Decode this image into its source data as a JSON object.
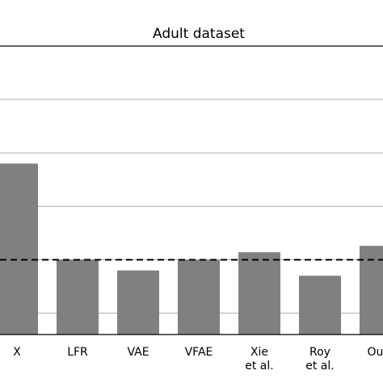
{
  "chart_data": {
    "type": "bar",
    "title": "Adult dataset",
    "categories": [
      [
        "X"
      ],
      [
        "LFR"
      ],
      [
        "VAE"
      ],
      [
        "VFAE"
      ],
      [
        "Xie",
        "et al."
      ],
      [
        "Roy",
        "et al."
      ],
      [
        "Ours"
      ]
    ],
    "values": [
      0.86,
      0.77,
      0.76,
      0.77,
      0.777,
      0.755,
      0.783
    ],
    "ylim": [
      0.7,
      0.97
    ],
    "yticks": [
      0.72,
      0.77,
      0.82,
      0.87,
      0.92
    ],
    "reference_line": 0.77,
    "grid": "horizontal",
    "bar_color": "#808080",
    "xlabel": "",
    "ylabel": ""
  }
}
